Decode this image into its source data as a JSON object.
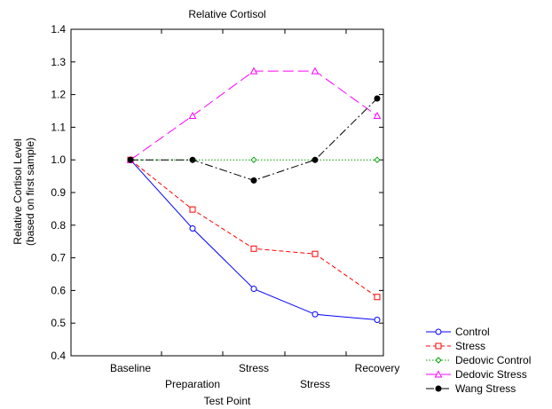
{
  "chart_data": {
    "type": "line",
    "title": "Relative Cortisol",
    "xlabel": "Test Point",
    "ylabel": [
      "Relative Cortisol Level",
      "(based on first sample)"
    ],
    "categories": [
      "Baseline",
      "Preparation",
      "Stress",
      "Stress",
      "Recovery"
    ],
    "ylim": [
      0.4,
      1.4
    ],
    "yticks": [
      "0.4",
      "0.5",
      "0.6",
      "0.7",
      "0.8",
      "0.9",
      "1.0",
      "1.1",
      "1.2",
      "1.3",
      "1.4"
    ],
    "grid": false,
    "legend_position": "bottom-right outside",
    "series": [
      {
        "name": "Control",
        "values": [
          1.0,
          0.79,
          0.605,
          0.527,
          0.51
        ],
        "color": "#0000ff",
        "dash": "solid",
        "marker": "circle-open"
      },
      {
        "name": "Stress",
        "values": [
          1.0,
          0.848,
          0.728,
          0.712,
          0.58
        ],
        "color": "#ff0000",
        "dash": "dashed",
        "marker": "square-open"
      },
      {
        "name": "Dedovic Control",
        "values": [
          1.0,
          1.0,
          1.0,
          1.0,
          1.0
        ],
        "color": "#00a000",
        "dash": "dotted",
        "marker": "diamond-open"
      },
      {
        "name": "Dedovic Stress",
        "values": [
          1.0,
          1.135,
          1.272,
          1.272,
          1.135
        ],
        "color": "#ff00ff",
        "dash": "long-dash",
        "marker": "triangle-open"
      },
      {
        "name": "Wang Stress",
        "values": [
          1.0,
          1.0,
          0.937,
          1.0,
          1.188
        ],
        "color": "#000000",
        "dash": "dash-dot",
        "marker": "circle-filled"
      }
    ]
  }
}
